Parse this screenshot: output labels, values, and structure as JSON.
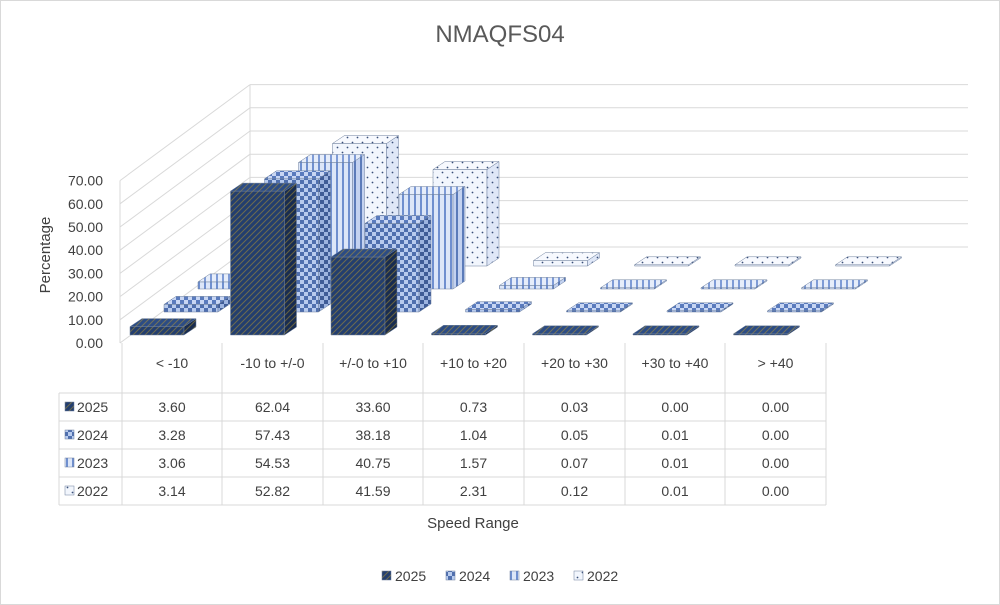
{
  "chart_data": {
    "type": "bar",
    "subtype": "3d-column-with-data-table",
    "title": "NMAQFS04",
    "xlabel": "Speed Range",
    "ylabel": "Percentage",
    "ylim": [
      0,
      70
    ],
    "yticks": [
      "0.00",
      "10.00",
      "20.00",
      "30.00",
      "40.00",
      "50.00",
      "60.00",
      "70.00"
    ],
    "categories": [
      "< -10",
      "-10 to +/-0",
      "+/-0 to +10",
      "+10 to +20",
      "+20 to +30",
      "+30 to +40",
      "> +40"
    ],
    "series": [
      {
        "name": "2025",
        "pattern": "diagonal",
        "color": "#203864",
        "values": [
          3.6,
          62.04,
          33.6,
          0.73,
          0.03,
          0.0,
          0.0
        ],
        "labels": [
          "3.60",
          "62.04",
          "33.60",
          "0.73",
          "0.03",
          "0.00",
          "0.00"
        ]
      },
      {
        "name": "2024",
        "pattern": "checker",
        "color": "#5b7cc0",
        "values": [
          3.28,
          57.43,
          38.18,
          1.04,
          0.05,
          0.01,
          0.0
        ],
        "labels": [
          "3.28",
          "57.43",
          "38.18",
          "1.04",
          "0.05",
          "0.01",
          "0.00"
        ]
      },
      {
        "name": "2023",
        "pattern": "vertical",
        "color": "#8faadc",
        "values": [
          3.06,
          54.53,
          40.75,
          1.57,
          0.07,
          0.01,
          0.0
        ],
        "labels": [
          "3.06",
          "54.53",
          "40.75",
          "1.57",
          "0.07",
          "0.01",
          "0.00"
        ]
      },
      {
        "name": "2022",
        "pattern": "dotted",
        "color": "#dae3f3",
        "values": [
          3.14,
          52.82,
          41.59,
          2.31,
          0.12,
          0.01,
          0.0
        ],
        "labels": [
          "3.14",
          "52.82",
          "41.59",
          "2.31",
          "0.12",
          "0.01",
          "0.00"
        ]
      }
    ],
    "grid": true,
    "legend": "bottom",
    "data_table": true
  }
}
